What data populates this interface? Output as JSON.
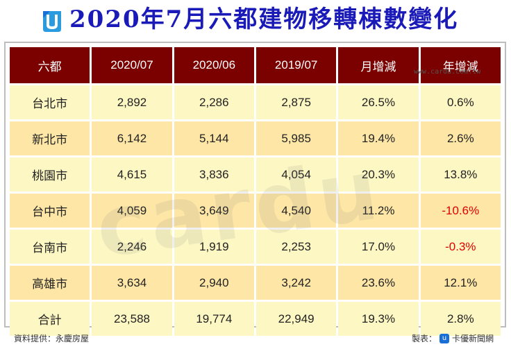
{
  "title": "2020年7月六都建物移轉棟數變化",
  "table": {
    "headers": [
      "六都",
      "2020/07",
      "2020/06",
      "2019/07",
      "月增減",
      "年增減"
    ],
    "rows": [
      [
        "台北市",
        "2,892",
        "2,286",
        "2,875",
        "26.5%",
        "0.6%"
      ],
      [
        "新北市",
        "6,142",
        "5,144",
        "5,985",
        "19.4%",
        "2.6%"
      ],
      [
        "桃園市",
        "4,615",
        "3,836",
        "4,054",
        "20.3%",
        "13.8%"
      ],
      [
        "台中市",
        "4,059",
        "3,649",
        "4,540",
        "11.2%",
        "-10.6%"
      ],
      [
        "台南市",
        "2,246",
        "1,919",
        "2,253",
        "17.0%",
        "-0.3%"
      ],
      [
        "高雄市",
        "3,634",
        "2,940",
        "3,242",
        "23.6%",
        "12.1%"
      ],
      [
        "合計",
        "23,588",
        "19,774",
        "22,949",
        "19.3%",
        "2.8%"
      ]
    ]
  },
  "watermark": "cardu",
  "url_mark": "www.cardu.com.tw",
  "footer": {
    "source": "資料提供：永慶房屋",
    "maker_label": "製表：",
    "maker_logo": "u",
    "maker_name": "卡優新聞網"
  },
  "colors": {
    "title": "#1a1ab8",
    "header_bg": "#7b0000",
    "row_light": "#fdf7c3",
    "row_dark": "#fde6a6",
    "negative": "#e00000"
  }
}
